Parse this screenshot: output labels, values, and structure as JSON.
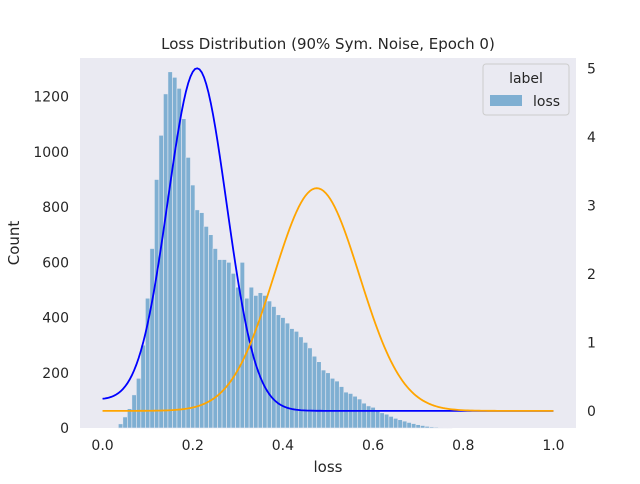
{
  "colors": {
    "plot_background": "#eaeaf2",
    "bar_fill": "#7fafd2",
    "bar_edge": "#eaeaf2",
    "gaussian_clean": "#0000ff",
    "gaussian_noisy": "#ffa500",
    "legend_background": "#eaeaf2",
    "text": "#262626"
  },
  "chart_data": {
    "type": "bar",
    "title": "Loss Distribution (90% Sym. Noise, Epoch 0)",
    "xlabel": "loss",
    "ylabel": "Count",
    "xlim": [
      -0.05,
      1.05
    ],
    "ylim": [
      0,
      1340
    ],
    "xticks": [
      "0.0",
      "0.2",
      "0.4",
      "0.6",
      "0.8",
      "1.0"
    ],
    "yticks": [
      "0",
      "200",
      "400",
      "600",
      "800",
      "1000",
      "1200"
    ],
    "y2lim": [
      -0.25,
      5.15
    ],
    "y2ticks": [
      "0",
      "1",
      "2",
      "3",
      "4",
      "5"
    ],
    "grid": false,
    "legend": {
      "title": "label",
      "position": "top-right",
      "entries": [
        "loss"
      ]
    },
    "histogram": {
      "name": "loss",
      "bin_start": 0.035,
      "bin_width": 0.01,
      "counts": [
        15,
        40,
        70,
        120,
        180,
        300,
        470,
        650,
        900,
        1060,
        1210,
        1290,
        1270,
        1230,
        1120,
        980,
        880,
        790,
        780,
        730,
        700,
        650,
        610,
        610,
        600,
        560,
        510,
        600,
        470,
        510,
        480,
        490,
        480,
        460,
        440,
        410,
        400,
        380,
        360,
        350,
        330,
        310,
        290,
        260,
        240,
        210,
        200,
        180,
        170,
        150,
        130,
        125,
        115,
        105,
        90,
        80,
        75,
        65,
        55,
        50,
        42,
        35,
        30,
        25,
        20,
        16,
        12,
        9,
        6,
        4,
        3,
        2,
        1,
        1
      ]
    },
    "curves": [
      {
        "x_start": 0.0,
        "x_end": 1.0,
        "y_at_x0": 0.15,
        "peak_x": 0.21,
        "peak_y": 5.0,
        "sigma": 0.065,
        "floor": 0.0
      },
      {
        "x_start": 0.0,
        "x_end": 1.0,
        "y_at_x0": 0.0,
        "peak_x": 0.475,
        "peak_y": 3.25,
        "sigma": 0.095,
        "floor": 0.0
      }
    ]
  }
}
